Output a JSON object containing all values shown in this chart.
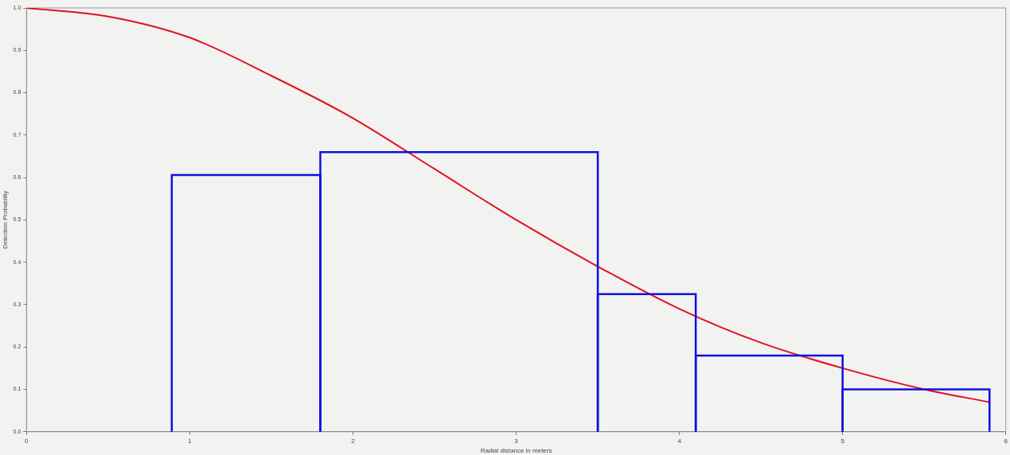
{
  "chart_data": {
    "type": "histogram",
    "xlabel": "Radial distance in meters",
    "ylabel": "Detection Probability",
    "bins": [
      0.89,
      1.8,
      3.5,
      4.1,
      5.0,
      5.9
    ],
    "values": [
      0.606,
      0.66,
      0.325,
      0.18,
      0.1
    ],
    "color": "#1010e0",
    "series": [
      {
        "type": "line",
        "color": "#e01020",
        "x": [
          0,
          0.5,
          1,
          1.5,
          2,
          2.5,
          3,
          3.5,
          4,
          4.5,
          5,
          5.5,
          5.9
        ],
        "values": [
          1.0,
          0.98,
          0.93,
          0.84,
          0.74,
          0.62,
          0.5,
          0.39,
          0.29,
          0.21,
          0.15,
          0.1,
          0.07
        ]
      }
    ],
    "xlim": [
      0,
      6
    ],
    "xticks": [
      0,
      1,
      2,
      3,
      4,
      5,
      6
    ],
    "ylim": [
      0,
      1
    ],
    "yticks": [
      {
        "value": 0,
        "label": "0.0"
      },
      0.1,
      0.2,
      0.3,
      0.4,
      0.5,
      0.6,
      0.7,
      0.8,
      0.9,
      {
        "value": 1,
        "label": "1.0"
      }
    ],
    "grid": false,
    "marker": "none"
  }
}
